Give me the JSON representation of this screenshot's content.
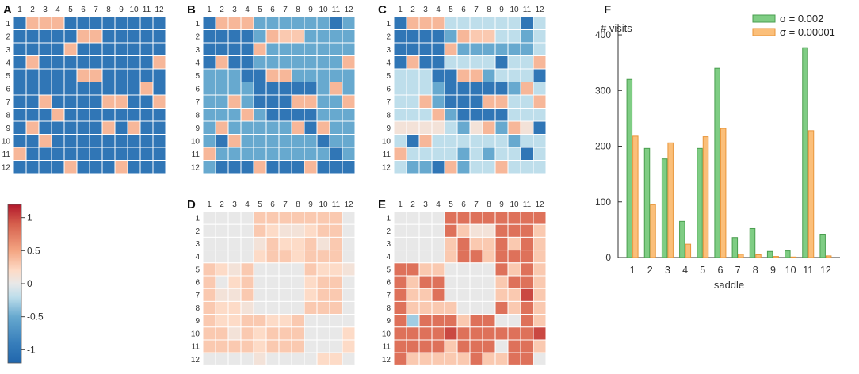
{
  "panels": [
    {
      "letter": "A",
      "chart_ref": 0
    },
    {
      "letter": "B",
      "chart_ref": 1
    },
    {
      "letter": "C",
      "chart_ref": 2
    },
    {
      "letter": "D",
      "chart_ref": 3
    },
    {
      "letter": "E",
      "chart_ref": 4
    },
    {
      "letter": "F",
      "chart_ref": 6
    }
  ],
  "chart_data": [
    {
      "type": "heatmap",
      "panel": "A",
      "row_labels": [
        "1",
        "2",
        "3",
        "4",
        "5",
        "6",
        "7",
        "8",
        "9",
        "10",
        "11",
        "12"
      ],
      "col_labels": [
        "1",
        "2",
        "3",
        "4",
        "5",
        "6",
        "7",
        "8",
        "9",
        "10",
        "11",
        "12"
      ],
      "value_range": [
        -1.2,
        1.2
      ],
      "values": [
        [
          -1,
          0.4,
          0.4,
          0.4,
          -1,
          -1,
          -1,
          -1,
          -1,
          -1,
          -1,
          -1
        ],
        [
          -1,
          -1,
          -1,
          -1,
          -1,
          0.4,
          0.4,
          -1,
          -1,
          -1,
          -1,
          -1
        ],
        [
          -1,
          -1,
          -1,
          -1,
          0.4,
          -1,
          -1,
          -1,
          -1,
          -1,
          -1,
          -1
        ],
        [
          -1,
          0.4,
          -1,
          -1,
          -1,
          -1,
          -1,
          -1,
          -1,
          -1,
          -1,
          0.4
        ],
        [
          -1,
          -1,
          -1,
          -1,
          -1,
          0.4,
          0.4,
          -1,
          -1,
          -1,
          -1,
          -1
        ],
        [
          -1,
          -1,
          -1,
          -1,
          -1,
          -1,
          -1,
          -1,
          -1,
          -1,
          0.4,
          -1
        ],
        [
          -1,
          -1,
          0.4,
          -1,
          -1,
          -1,
          -1,
          0.4,
          0.4,
          -1,
          -1,
          0.4
        ],
        [
          -1,
          -1,
          -1,
          0.4,
          -1,
          -1,
          -1,
          -1,
          -1,
          -1,
          -1,
          -1
        ],
        [
          -1,
          0.4,
          -1,
          -1,
          -1,
          -1,
          -1,
          0.4,
          -1,
          0.4,
          -1,
          -1
        ],
        [
          -1,
          -1,
          0.4,
          -1,
          -1,
          -1,
          -1,
          -1,
          -1,
          -1,
          -1,
          -1
        ],
        [
          0.4,
          -1,
          -1,
          -1,
          -1,
          -1,
          -1,
          -1,
          -1,
          -1,
          -1,
          -1
        ],
        [
          -1,
          -1,
          -1,
          -1,
          0.4,
          -1,
          -1,
          -1,
          0.4,
          -1,
          -1,
          -1
        ]
      ]
    },
    {
      "type": "heatmap",
      "panel": "B",
      "row_labels": [
        "1",
        "2",
        "3",
        "4",
        "5",
        "6",
        "7",
        "8",
        "9",
        "10",
        "11",
        "12"
      ],
      "col_labels": [
        "1",
        "2",
        "3",
        "4",
        "5",
        "6",
        "7",
        "8",
        "9",
        "10",
        "11",
        "12"
      ],
      "value_range": [
        -1.2,
        1.2
      ],
      "values": [
        [
          -1,
          0.4,
          0.4,
          0.4,
          -0.5,
          -0.5,
          -0.5,
          -0.5,
          -0.5,
          -0.5,
          -1,
          -0.5
        ],
        [
          -1,
          -1,
          -1,
          -1,
          -0.5,
          0.4,
          0.3,
          0.3,
          -0.5,
          -0.5,
          -0.5,
          -0.5
        ],
        [
          -1,
          -1,
          -1,
          -1,
          0.4,
          -0.5,
          -0.5,
          -0.5,
          -0.5,
          -0.5,
          -0.5,
          -0.5
        ],
        [
          -1,
          0.4,
          -1,
          -1,
          -0.5,
          -0.5,
          -0.5,
          -0.5,
          -0.5,
          -0.5,
          -0.5,
          0.4
        ],
        [
          -0.5,
          -0.5,
          -0.5,
          -1,
          -1,
          0.4,
          0.4,
          -0.5,
          -0.5,
          -0.5,
          -0.5,
          -0.5
        ],
        [
          -0.5,
          -0.5,
          -0.5,
          -0.5,
          -1,
          -1,
          -1,
          -1,
          -1,
          -0.5,
          0.4,
          -0.5
        ],
        [
          -0.5,
          -0.5,
          0.4,
          -0.5,
          -1,
          -1,
          -1,
          0.4,
          0.4,
          -0.5,
          -0.5,
          0.4
        ],
        [
          -0.5,
          -0.5,
          -0.5,
          0.4,
          -0.5,
          -1,
          -1,
          -1,
          -1,
          -0.5,
          -0.5,
          -0.5
        ],
        [
          -0.5,
          0.4,
          -0.5,
          -0.5,
          -0.5,
          -0.5,
          -0.5,
          0.4,
          -1,
          0.4,
          -0.5,
          -0.5
        ],
        [
          -0.5,
          -1,
          0.4,
          -0.5,
          -0.5,
          -0.5,
          -0.5,
          -0.5,
          -0.5,
          -1,
          -0.5,
          -0.5
        ],
        [
          0.4,
          -0.5,
          -0.5,
          -0.5,
          -0.5,
          -0.5,
          -0.5,
          -0.5,
          -0.5,
          -0.5,
          -1,
          -0.5
        ],
        [
          -0.5,
          -1,
          -1,
          -1,
          0.4,
          -1,
          -1,
          -1,
          0.4,
          -1,
          -1,
          -1
        ]
      ]
    },
    {
      "type": "heatmap",
      "panel": "C",
      "row_labels": [
        "1",
        "2",
        "3",
        "4",
        "5",
        "6",
        "7",
        "8",
        "9",
        "10",
        "11",
        "12"
      ],
      "col_labels": [
        "1",
        "2",
        "3",
        "4",
        "5",
        "6",
        "7",
        "8",
        "9",
        "10",
        "11",
        "12"
      ],
      "value_range": [
        -1.2,
        1.2
      ],
      "values": [
        [
          -1,
          0.4,
          0.4,
          0.4,
          -0.2,
          -0.2,
          -0.2,
          -0.2,
          -0.2,
          -0.2,
          -1,
          -0.2
        ],
        [
          -1,
          -1,
          -1,
          -1,
          -0.5,
          0.4,
          0.3,
          0.3,
          -0.2,
          -0.2,
          -0.5,
          -0.2
        ],
        [
          -1,
          -1,
          -1,
          -1,
          0.4,
          -0.5,
          -0.5,
          -0.5,
          -0.5,
          -0.5,
          -0.5,
          -0.2
        ],
        [
          -1,
          0.4,
          -1,
          -1,
          -0.2,
          -0.2,
          -0.2,
          -0.2,
          -1,
          -0.2,
          -0.2,
          0.4
        ],
        [
          -0.2,
          -0.2,
          -0.2,
          -1,
          -1,
          0.4,
          0.4,
          -0.5,
          -0.2,
          -0.2,
          -0.2,
          -1
        ],
        [
          -0.2,
          -0.2,
          -0.2,
          -0.5,
          -1,
          -1,
          -1,
          -1,
          -1,
          -0.5,
          0.4,
          -0.2
        ],
        [
          -0.2,
          -0.2,
          0.4,
          -0.5,
          -1,
          -1,
          -1,
          0.4,
          0.4,
          -0.2,
          -0.2,
          0.4
        ],
        [
          -0.2,
          -0.2,
          -0.2,
          0.4,
          -0.5,
          -1,
          -1,
          -1,
          -1,
          -0.2,
          -0.2,
          -0.2
        ],
        [
          0.1,
          0.1,
          0.1,
          0.1,
          -0.2,
          -0.5,
          0.1,
          0.4,
          -0.5,
          0.4,
          0.1,
          -1
        ],
        [
          -0.2,
          -1,
          0.4,
          -0.2,
          -0.2,
          -0.2,
          -0.2,
          -0.2,
          -0.2,
          -0.5,
          -0.2,
          -0.2
        ],
        [
          0.4,
          -0.2,
          -0.2,
          -0.2,
          -0.2,
          -0.5,
          -0.2,
          -0.5,
          -0.2,
          -0.2,
          -1,
          -0.2
        ],
        [
          -0.2,
          -0.5,
          -0.5,
          -1,
          0.4,
          -0.5,
          -0.2,
          -0.2,
          0.4,
          -0.2,
          -0.2,
          -0.2
        ]
      ]
    },
    {
      "type": "heatmap",
      "panel": "D",
      "row_labels": [
        "1",
        "2",
        "3",
        "4",
        "5",
        "6",
        "7",
        "8",
        "9",
        "10",
        "11",
        "12"
      ],
      "col_labels": [
        "1",
        "2",
        "3",
        "4",
        "5",
        "6",
        "7",
        "8",
        "9",
        "10",
        "11",
        "12"
      ],
      "value_range": [
        -1.2,
        1.2
      ],
      "values": [
        [
          0,
          0,
          0,
          0,
          0.3,
          0.3,
          0.3,
          0.3,
          0.3,
          0.3,
          0.3,
          0
        ],
        [
          0,
          0,
          0,
          0,
          0.3,
          0.2,
          0.1,
          0.1,
          0.2,
          0.3,
          0.3,
          0
        ],
        [
          0,
          0,
          0,
          0,
          0.1,
          0.3,
          0.2,
          0.2,
          0.3,
          0.1,
          0.3,
          0
        ],
        [
          0,
          0,
          0,
          0,
          0.2,
          0.3,
          0.3,
          0.2,
          0.3,
          0.3,
          0.3,
          0
        ],
        [
          0.3,
          0.2,
          0.1,
          0.3,
          0,
          0,
          0,
          0,
          0.3,
          0.2,
          0.2,
          0.1
        ],
        [
          0.3,
          0,
          0.2,
          0.3,
          0,
          0,
          0,
          0,
          0.2,
          0.3,
          0.3,
          0
        ],
        [
          0.3,
          0.1,
          0.1,
          0.3,
          0,
          0,
          0,
          0,
          0.2,
          0.3,
          0.3,
          0
        ],
        [
          0.3,
          0.2,
          0.2,
          0.1,
          0,
          0,
          0,
          0,
          0.3,
          0.3,
          0.3,
          0
        ],
        [
          0.3,
          0.2,
          0.2,
          0.3,
          0.3,
          0.2,
          0.2,
          0.3,
          0,
          0,
          0,
          0
        ],
        [
          0.3,
          0.3,
          0.1,
          0.3,
          0.2,
          0.3,
          0.3,
          0.3,
          0,
          0,
          0,
          0.2
        ],
        [
          0.3,
          0.3,
          0.3,
          0.3,
          0.2,
          0.3,
          0.3,
          0.3,
          0,
          0,
          0,
          0.2
        ],
        [
          0,
          0,
          0,
          0,
          0.1,
          0,
          0,
          0,
          0,
          0.2,
          0.2,
          0
        ]
      ]
    },
    {
      "type": "heatmap",
      "panel": "E",
      "row_labels": [
        "1",
        "2",
        "3",
        "4",
        "5",
        "6",
        "7",
        "8",
        "9",
        "10",
        "11",
        "12"
      ],
      "col_labels": [
        "1",
        "2",
        "3",
        "4",
        "5",
        "6",
        "7",
        "8",
        "9",
        "10",
        "11",
        "12"
      ],
      "value_range": [
        -1.2,
        1.2
      ],
      "values": [
        [
          0,
          0,
          0,
          0,
          0.8,
          0.8,
          0.8,
          0.8,
          0.8,
          0.8,
          0.8,
          0.8
        ],
        [
          0,
          0,
          0,
          0,
          0.8,
          0.3,
          0.1,
          0.1,
          0.8,
          0.8,
          0.8,
          0.3
        ],
        [
          0,
          0,
          0,
          0,
          0.3,
          0.8,
          0.3,
          0.3,
          0.8,
          0.3,
          0.8,
          0.3
        ],
        [
          0,
          0,
          0,
          0,
          0.3,
          0.8,
          0.8,
          0.3,
          0.8,
          0.8,
          0.8,
          0.3
        ],
        [
          0.8,
          0.8,
          0.3,
          0.3,
          0,
          0,
          0,
          0,
          0.8,
          0.3,
          0.8,
          0.3
        ],
        [
          0.8,
          0.3,
          0.8,
          0.8,
          0,
          0,
          0,
          0,
          0.3,
          0.8,
          0.8,
          0.3
        ],
        [
          0.8,
          0.3,
          0.3,
          0.8,
          0,
          0,
          0,
          0,
          0.3,
          0.3,
          1,
          0.3
        ],
        [
          0.8,
          0.3,
          0.3,
          0.3,
          0.3,
          0,
          0,
          0,
          0.8,
          0.3,
          0.8,
          0.3
        ],
        [
          0.8,
          -0.3,
          0.8,
          0.8,
          0.8,
          0.3,
          0.8,
          0.8,
          0,
          0,
          0.8,
          0.3
        ],
        [
          0.8,
          0.8,
          0.8,
          0.8,
          1,
          0.8,
          0.8,
          0.8,
          0.8,
          0.8,
          0.8,
          1
        ],
        [
          0.8,
          0.8,
          0.8,
          0.8,
          0.3,
          0.8,
          0.8,
          0.8,
          0,
          0.8,
          0.8,
          0.3
        ],
        [
          0.8,
          0.3,
          0.3,
          0.3,
          0.3,
          0.3,
          0.8,
          0.3,
          0.3,
          0.8,
          0.8,
          0
        ]
      ]
    },
    {
      "type": "colorbar",
      "ticks": [
        1,
        0.5,
        0,
        -0.5,
        -1
      ],
      "tick_labels": [
        "1",
        "0.5",
        "0",
        "-0.5",
        "-1"
      ],
      "range": [
        -1.2,
        1.2
      ]
    },
    {
      "type": "bar",
      "panel": "F",
      "title": "",
      "ylabel": "# visits",
      "xlabel": "saddle",
      "categories": [
        "1",
        "2",
        "3",
        "4",
        "5",
        "6",
        "7",
        "8",
        "9",
        "10",
        "11",
        "12"
      ],
      "ylim": [
        0,
        420
      ],
      "yticks": [
        0,
        100,
        200,
        300,
        400
      ],
      "ytick_labels": [
        "0",
        "100",
        "200",
        "300",
        "400"
      ],
      "series": [
        {
          "name": "σ = 0.002",
          "color": "#7fcd84",
          "edge": "#4a9e4f",
          "values": [
            320,
            196,
            177,
            65,
            196,
            340,
            36,
            52,
            11,
            12,
            377,
            42
          ]
        },
        {
          "name": "σ = 0.00001",
          "color": "#fbbf7a",
          "edge": "#e8953a",
          "values": [
            218,
            95,
            206,
            24,
            217,
            232,
            6,
            5,
            2,
            1,
            228,
            3
          ]
        }
      ],
      "legend_position": "top-right"
    }
  ]
}
